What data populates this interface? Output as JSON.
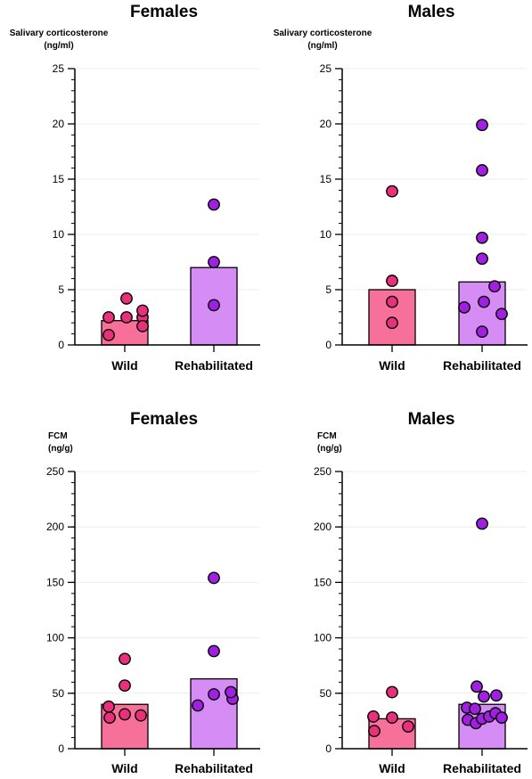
{
  "colors": {
    "wild_bar": "#f7709a",
    "wild_point": "#e8317a",
    "rehab_bar": "#d68cf5",
    "rehab_point": "#a020e0",
    "outline": "#000000"
  },
  "chart_data": [
    {
      "type": "bar",
      "title": "Females",
      "ylabel": [
        "Salivary corticosterone",
        "(ng/ml)"
      ],
      "categories": [
        "Wild",
        "Rehabilitated"
      ],
      "values": [
        2.2,
        7.0
      ],
      "ylim": [
        0,
        25
      ],
      "yticks": [
        0,
        5,
        10,
        15,
        20,
        25
      ],
      "points": [
        [
          0.9,
          2.5,
          2.5,
          2.5,
          1.7,
          3.1,
          4.2
        ],
        [
          3.6,
          7.5,
          12.7
        ]
      ]
    },
    {
      "type": "bar",
      "title": "Males",
      "ylabel": [
        "Salivary corticosterone",
        "(ng/ml)"
      ],
      "categories": [
        "Wild",
        "Rehabilitated"
      ],
      "values": [
        5.0,
        5.7
      ],
      "ylim": [
        0,
        25
      ],
      "yticks": [
        0,
        5,
        10,
        15,
        20,
        25
      ],
      "points": [
        [
          2.0,
          3.9,
          5.8,
          13.9
        ],
        [
          1.2,
          3.4,
          2.8,
          3.9,
          5.3,
          7.8,
          9.7,
          15.8,
          19.9
        ]
      ]
    },
    {
      "type": "bar",
      "title": "Females",
      "ylabel": [
        "FCM",
        "(ng/g)"
      ],
      "categories": [
        "Wild",
        "Rehabilitated"
      ],
      "values": [
        40,
        63
      ],
      "ylim": [
        0,
        250
      ],
      "yticks": [
        0,
        50,
        100,
        150,
        200,
        250
      ],
      "points": [
        [
          28,
          31,
          30,
          38,
          57,
          81
        ],
        [
          39,
          49,
          45,
          51,
          88,
          154
        ]
      ]
    },
    {
      "type": "bar",
      "title": "Males",
      "ylabel": [
        "FCM",
        "(ng/g)"
      ],
      "categories": [
        "Wild",
        "Rehabilitated"
      ],
      "values": [
        27,
        40
      ],
      "ylim": [
        0,
        250
      ],
      "yticks": [
        0,
        50,
        100,
        150,
        200,
        250
      ],
      "points": [
        [
          16,
          29,
          28,
          20,
          51
        ],
        [
          26,
          23,
          27,
          37,
          36,
          29,
          32,
          47,
          48,
          56,
          28,
          203
        ]
      ]
    }
  ]
}
